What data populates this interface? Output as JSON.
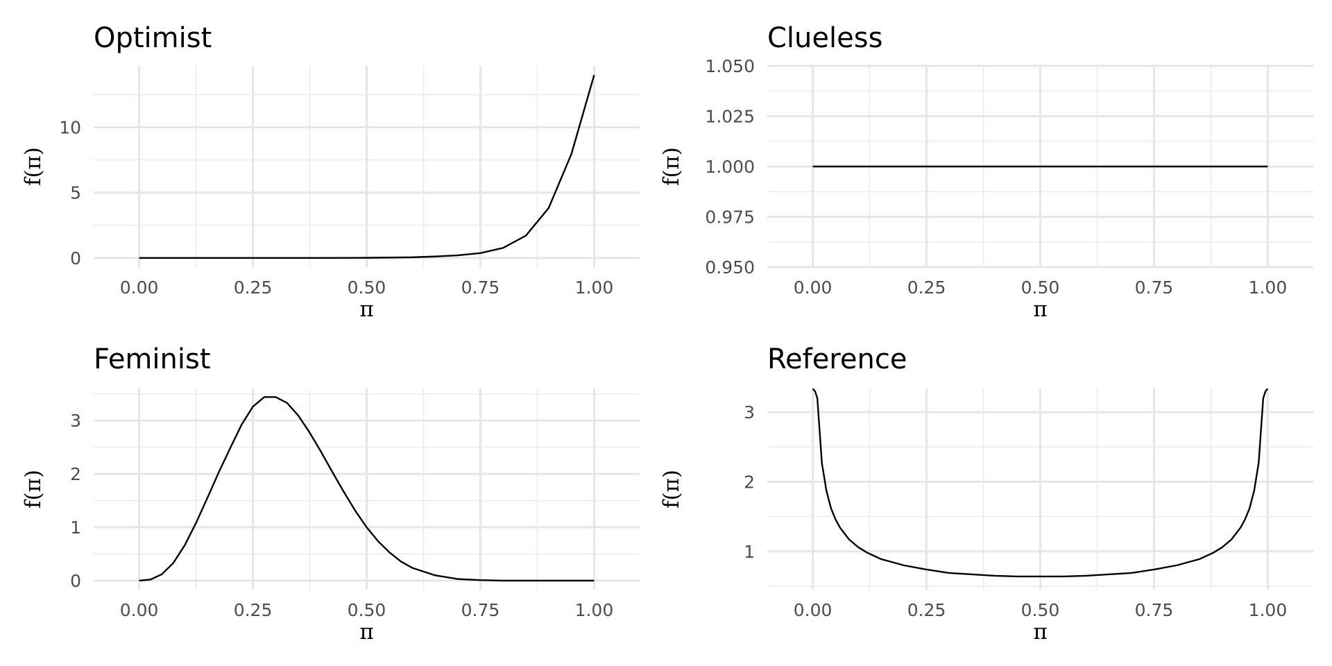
{
  "chart_data": [
    {
      "type": "line",
      "title": "Optimist",
      "xlabel": "π",
      "ylabel": "f(π)",
      "xlim": [
        -0.1,
        1.1
      ],
      "ylim": [
        -0.7,
        14.7
      ],
      "x_ticks": [
        0,
        0.25,
        0.5,
        0.75,
        1
      ],
      "x_tick_labels": [
        "0.00",
        "0.25",
        "0.50",
        "0.75",
        "1.00"
      ],
      "y_ticks": [
        0,
        5,
        10
      ],
      "y_tick_labels": [
        "0",
        "5",
        "10"
      ],
      "grid": true,
      "series": [
        {
          "x": [
            0,
            0.1,
            0.2,
            0.3,
            0.4,
            0.5,
            0.55,
            0.6,
            0.65,
            0.7,
            0.75,
            0.8,
            0.85,
            0.9,
            0.95,
            1.0
          ],
          "y": [
            0,
            0,
            0,
            0,
            0,
            0.01,
            0.03,
            0.05,
            0.11,
            0.2,
            0.37,
            0.77,
            1.71,
            3.82,
            7.95,
            14.0
          ]
        }
      ]
    },
    {
      "type": "line",
      "title": "Clueless",
      "xlabel": "π",
      "ylabel": "f(π)",
      "xlim": [
        -0.1,
        1.1
      ],
      "ylim": [
        0.95,
        1.05
      ],
      "x_ticks": [
        0,
        0.25,
        0.5,
        0.75,
        1
      ],
      "x_tick_labels": [
        "0.00",
        "0.25",
        "0.50",
        "0.75",
        "1.00"
      ],
      "y_ticks": [
        0.95,
        0.975,
        1.0,
        1.025,
        1.05
      ],
      "y_tick_labels": [
        "0.950",
        "0.975",
        "1.000",
        "1.025",
        "1.050"
      ],
      "grid": true,
      "series": [
        {
          "x": [
            0,
            1
          ],
          "y": [
            1,
            1
          ]
        }
      ]
    },
    {
      "type": "line",
      "title": "Feminist",
      "xlabel": "π",
      "ylabel": "f(π)",
      "xlim": [
        -0.1,
        1.1
      ],
      "ylim": [
        -0.17,
        3.6
      ],
      "x_ticks": [
        0,
        0.25,
        0.5,
        0.75,
        1
      ],
      "x_tick_labels": [
        "0.00",
        "0.25",
        "0.50",
        "0.75",
        "1.00"
      ],
      "y_ticks": [
        0,
        1,
        2,
        3
      ],
      "y_tick_labels": [
        "0",
        "1",
        "2",
        "3"
      ],
      "grid": true,
      "series": [
        {
          "x": [
            0,
            0.025,
            0.05,
            0.075,
            0.1,
            0.125,
            0.15,
            0.175,
            0.2,
            0.225,
            0.25,
            0.275,
            0.3,
            0.325,
            0.35,
            0.375,
            0.4,
            0.425,
            0.45,
            0.475,
            0.5,
            0.525,
            0.55,
            0.575,
            0.6,
            0.65,
            0.7,
            0.75,
            0.8,
            0.9,
            1.0
          ],
          "y": [
            0,
            0.02,
            0.12,
            0.33,
            0.66,
            1.08,
            1.55,
            2.03,
            2.48,
            2.92,
            3.26,
            3.44,
            3.44,
            3.33,
            3.09,
            2.77,
            2.41,
            2.03,
            1.66,
            1.31,
            1.0,
            0.74,
            0.53,
            0.36,
            0.24,
            0.1,
            0.03,
            0.01,
            0,
            0,
            0
          ]
        }
      ]
    },
    {
      "type": "line",
      "title": "Reference",
      "xlabel": "π",
      "ylabel": "f(π)",
      "xlim": [
        -0.1,
        1.1
      ],
      "ylim": [
        0.45,
        3.34
      ],
      "x_ticks": [
        0,
        0.25,
        0.5,
        0.75,
        1
      ],
      "x_tick_labels": [
        "0.00",
        "0.25",
        "0.50",
        "0.75",
        "1.00"
      ],
      "y_ticks": [
        1,
        2,
        3
      ],
      "y_tick_labels": [
        "1",
        "2",
        "3"
      ],
      "grid": true,
      "series": [
        {
          "x": [
            0.0,
            0.005,
            0.01,
            0.02,
            0.03,
            0.04,
            0.05,
            0.06,
            0.08,
            0.1,
            0.12,
            0.15,
            0.2,
            0.25,
            0.3,
            0.35,
            0.4,
            0.45,
            0.5,
            0.55,
            0.6,
            0.65,
            0.7,
            0.75,
            0.8,
            0.85,
            0.88,
            0.9,
            0.92,
            0.94,
            0.95,
            0.96,
            0.97,
            0.98,
            0.99,
            0.995,
            1.0
          ],
          "y": [
            3.34,
            3.3,
            3.2,
            2.27,
            1.87,
            1.62,
            1.46,
            1.34,
            1.17,
            1.06,
            0.98,
            0.89,
            0.8,
            0.74,
            0.69,
            0.67,
            0.65,
            0.64,
            0.64,
            0.64,
            0.65,
            0.67,
            0.69,
            0.74,
            0.8,
            0.89,
            0.98,
            1.06,
            1.17,
            1.34,
            1.46,
            1.62,
            1.87,
            2.27,
            3.2,
            3.3,
            3.34
          ]
        }
      ]
    }
  ]
}
